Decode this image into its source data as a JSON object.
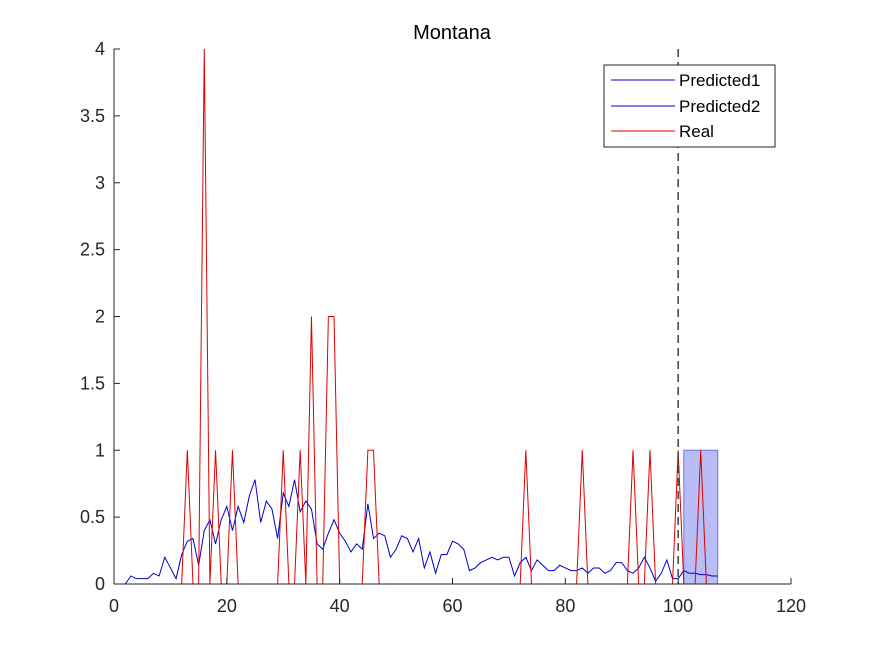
{
  "chart_data": {
    "type": "line",
    "title": "Montana",
    "xlabel": "",
    "ylabel": "",
    "xlim": [
      0,
      120
    ],
    "ylim": [
      0,
      4
    ],
    "x_ticks": [
      0,
      20,
      40,
      60,
      80,
      100,
      120
    ],
    "y_ticks": [
      0,
      0.5,
      1,
      1.5,
      2,
      2.5,
      3,
      3.5,
      4
    ],
    "y_tick_labels": [
      "0",
      "0.5",
      "1",
      "1.5",
      "2",
      "2.5",
      "3",
      "3.5",
      "4"
    ],
    "legend_position": "top-right",
    "grid": false,
    "vertical_marker": {
      "x": 100,
      "style": "dashed",
      "color": "#404040"
    },
    "shaded_band": {
      "x_range": [
        101,
        107
      ],
      "y_range": [
        0,
        1
      ],
      "color": "#b9bdf5"
    },
    "series": [
      {
        "name": "Predicted1",
        "color": "#0000c8",
        "x": [
          1,
          2,
          3,
          4,
          5,
          6,
          7,
          8,
          9,
          10,
          11,
          12,
          13,
          14,
          15,
          16,
          17,
          18,
          19,
          20,
          21,
          22,
          23,
          24,
          25,
          26,
          27,
          28,
          29,
          30,
          31,
          32,
          33,
          34,
          35,
          36,
          37,
          38,
          39,
          40,
          41,
          42,
          43,
          44,
          45,
          46,
          47,
          48,
          49,
          50,
          51,
          52,
          53,
          54,
          55,
          56,
          57,
          58,
          59,
          60,
          61,
          62,
          63,
          64,
          65,
          66,
          67,
          68,
          69,
          70,
          71,
          72,
          73,
          74,
          75,
          76,
          77,
          78,
          79,
          80,
          81,
          82,
          83,
          84,
          85,
          86,
          87,
          88,
          89,
          90,
          91,
          92,
          93,
          94,
          95,
          96,
          97,
          98,
          99,
          100
        ],
        "values": [
          0.0,
          0.0,
          0.06,
          0.04,
          0.04,
          0.04,
          0.08,
          0.06,
          0.2,
          0.12,
          0.04,
          0.22,
          0.32,
          0.34,
          0.14,
          0.4,
          0.48,
          0.3,
          0.48,
          0.58,
          0.4,
          0.58,
          0.46,
          0.66,
          0.78,
          0.46,
          0.62,
          0.56,
          0.34,
          0.68,
          0.58,
          0.78,
          0.54,
          0.62,
          0.56,
          0.3,
          0.26,
          0.38,
          0.48,
          0.38,
          0.32,
          0.24,
          0.3,
          0.26,
          0.6,
          0.34,
          0.38,
          0.36,
          0.2,
          0.26,
          0.36,
          0.34,
          0.24,
          0.34,
          0.12,
          0.24,
          0.08,
          0.22,
          0.22,
          0.32,
          0.3,
          0.26,
          0.1,
          0.12,
          0.16,
          0.18,
          0.2,
          0.18,
          0.2,
          0.2,
          0.06,
          0.16,
          0.2,
          0.1,
          0.18,
          0.14,
          0.1,
          0.1,
          0.14,
          0.12,
          0.1,
          0.1,
          0.12,
          0.08,
          0.12,
          0.12,
          0.08,
          0.1,
          0.16,
          0.16,
          0.1,
          0.08,
          0.12,
          0.2,
          0.12,
          0.02,
          0.08,
          0.18,
          0.04,
          0.04
        ]
      },
      {
        "name": "Predicted2",
        "color": "#0000c8",
        "x": [
          100,
          101,
          102,
          103,
          104,
          105,
          106,
          107
        ],
        "values": [
          0.04,
          0.1,
          0.08,
          0.08,
          0.07,
          0.07,
          0.06,
          0.06
        ]
      },
      {
        "name": "Real",
        "color": "#e00000",
        "x": [
          1,
          2,
          3,
          4,
          5,
          6,
          7,
          8,
          9,
          10,
          11,
          12,
          13,
          14,
          15,
          16,
          17,
          18,
          19,
          20,
          21,
          22,
          23,
          24,
          25,
          26,
          27,
          28,
          29,
          30,
          31,
          32,
          33,
          34,
          35,
          36,
          37,
          38,
          39,
          40,
          41,
          42,
          43,
          44,
          45,
          46,
          47,
          48,
          49,
          50,
          51,
          52,
          53,
          54,
          55,
          56,
          57,
          58,
          59,
          60,
          61,
          62,
          63,
          64,
          65,
          66,
          67,
          68,
          69,
          70,
          71,
          72,
          73,
          74,
          75,
          76,
          77,
          78,
          79,
          80,
          81,
          82,
          83,
          84,
          85,
          86,
          87,
          88,
          89,
          90,
          91,
          92,
          93,
          94,
          95,
          96,
          97,
          98,
          99,
          100,
          101,
          102,
          103,
          104,
          105,
          106,
          107
        ],
        "values": [
          0,
          0,
          0,
          0,
          0,
          0,
          0,
          0,
          0,
          0,
          0,
          0,
          1,
          0,
          0,
          4,
          0,
          1,
          0,
          0,
          1,
          0,
          0,
          0,
          0,
          0,
          0,
          0,
          0,
          1,
          0,
          0,
          1,
          0,
          2,
          0,
          0,
          2,
          2,
          0,
          0,
          0,
          0,
          0,
          1,
          1,
          0,
          0,
          0,
          0,
          0,
          0,
          0,
          0,
          0,
          0,
          0,
          0,
          0,
          0,
          0,
          0,
          0,
          0,
          0,
          0,
          0,
          0,
          0,
          0,
          0,
          0,
          1,
          0,
          0,
          0,
          0,
          0,
          0,
          0,
          0,
          0,
          1,
          0,
          0,
          0,
          0,
          0,
          0,
          0,
          0,
          1,
          0,
          0,
          1,
          0,
          0,
          0,
          0,
          1,
          0,
          0,
          0,
          1,
          0,
          0,
          0
        ]
      }
    ]
  }
}
